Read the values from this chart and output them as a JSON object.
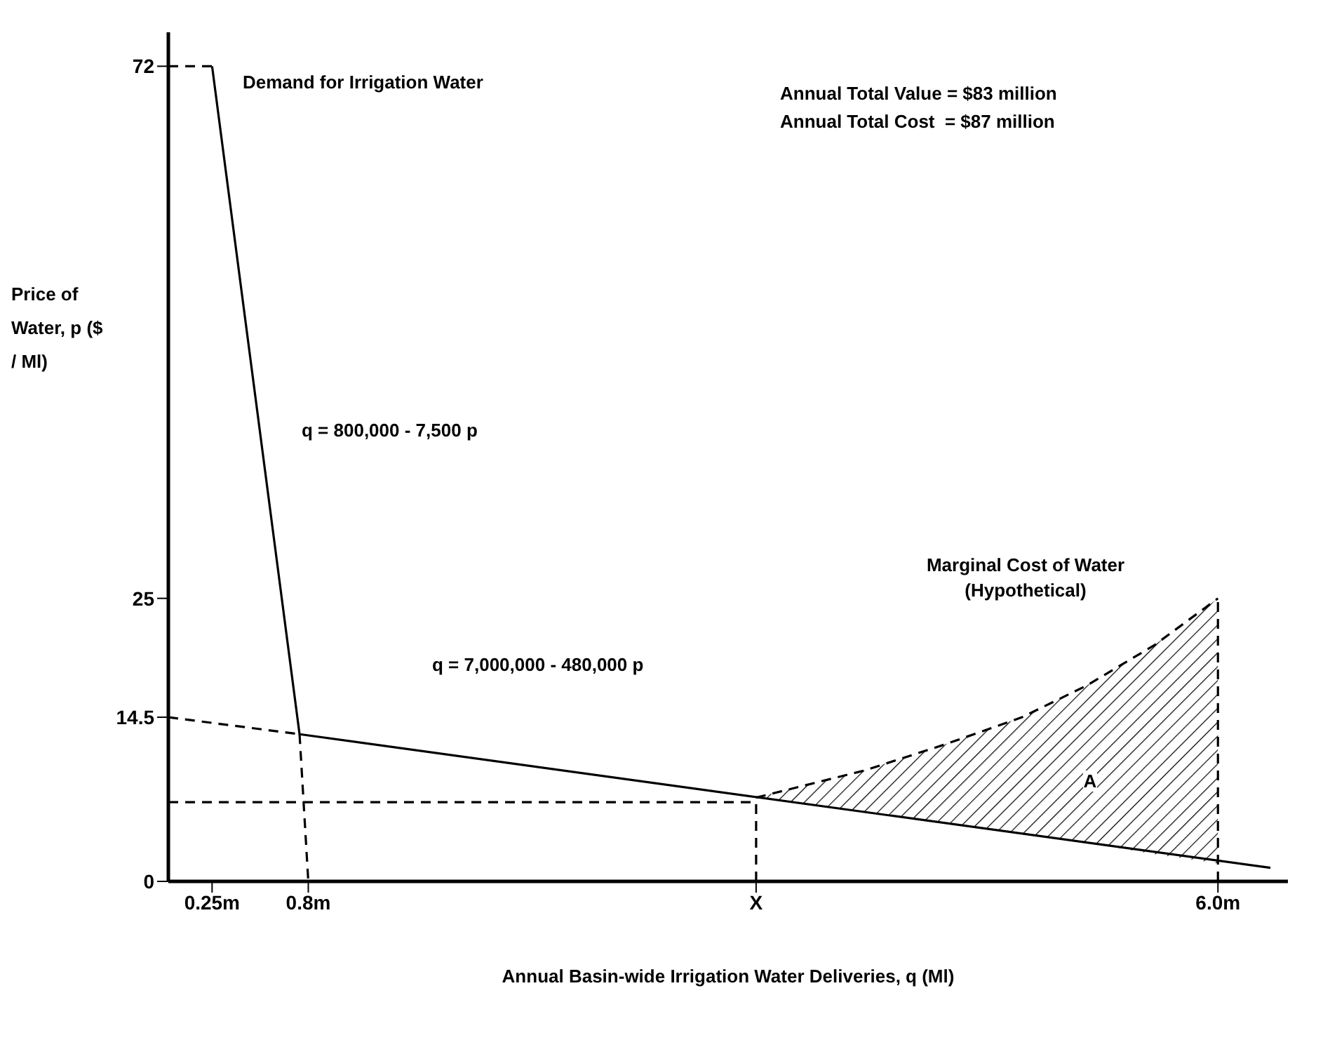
{
  "chart_data": {
    "type": "line",
    "xlabel": "Annual Basin-wide Irrigation Water Deliveries, q (Ml)",
    "ylabel": "Price of Water, p ($ / Ml)",
    "xlim": [
      0,
      6.4
    ],
    "xticks": [
      {
        "value": 0.25,
        "label": "0.25m"
      },
      {
        "value": 0.8,
        "label": "0.8m"
      },
      {
        "value": 3.36,
        "label": "X"
      },
      {
        "value": 6.0,
        "label": "6.0m"
      }
    ],
    "ylim": [
      0,
      75
    ],
    "yticks": [
      0,
      14.5,
      25,
      72
    ],
    "marker": "none",
    "series": [
      {
        "type": "line",
        "color": "#000000",
        "line_style": "solid",
        "x": [
          0.25,
          0.75,
          6.3
        ],
        "values": [
          72,
          13.0,
          1.2
        ]
      },
      {
        "type": "line",
        "color": "#000000",
        "line_style": "dashed",
        "x": [
          0,
          0.25
        ],
        "values": [
          72,
          72
        ]
      },
      {
        "type": "line",
        "color": "#000000",
        "line_style": "dashed",
        "x": [
          0.75,
          0.8
        ],
        "values": [
          13.0,
          0
        ]
      },
      {
        "type": "line",
        "color": "#000000",
        "line_style": "dashed",
        "x": [
          0,
          0.75
        ],
        "values": [
          14.5,
          13.0
        ]
      },
      {
        "type": "line",
        "color": "#000000",
        "line_style": "dashed",
        "x": [
          0,
          3.36
        ],
        "values": [
          7,
          7
        ]
      },
      {
        "type": "line",
        "color": "#000000",
        "line_style": "dashed",
        "x": [
          3.36,
          3.36
        ],
        "values": [
          0,
          7.4
        ]
      },
      {
        "type": "line",
        "color": "#000000",
        "line_style": "dashed",
        "x": [
          6.0,
          6.0
        ],
        "values": [
          0,
          25
        ]
      },
      {
        "type": "line",
        "color": "#000000",
        "line_style": "dashed",
        "x": [
          3.36,
          3.98,
          4.44,
          4.88,
          5.25,
          5.64,
          6.0
        ],
        "values": [
          7.4,
          9.8,
          12.1,
          14.5,
          17.3,
          20.9,
          25
        ],
        "lower": [
          7.4,
          6.1,
          5.2,
          4.2,
          3.4,
          2.4,
          1.6
        ],
        "upper": [
          7.4,
          9.8,
          12.1,
          14.5,
          17.3,
          20.9,
          25
        ]
      }
    ],
    "annotations": [
      "Demand for Irrigation Water",
      "q = 800,000 - 7,500 p",
      "q = 7,000,000 - 480,000 p",
      "Marginal Cost of Water (Hypothetical)",
      "A",
      "Annual Total Value = $83 million",
      "Annual Total Cost  = $87 million"
    ]
  }
}
